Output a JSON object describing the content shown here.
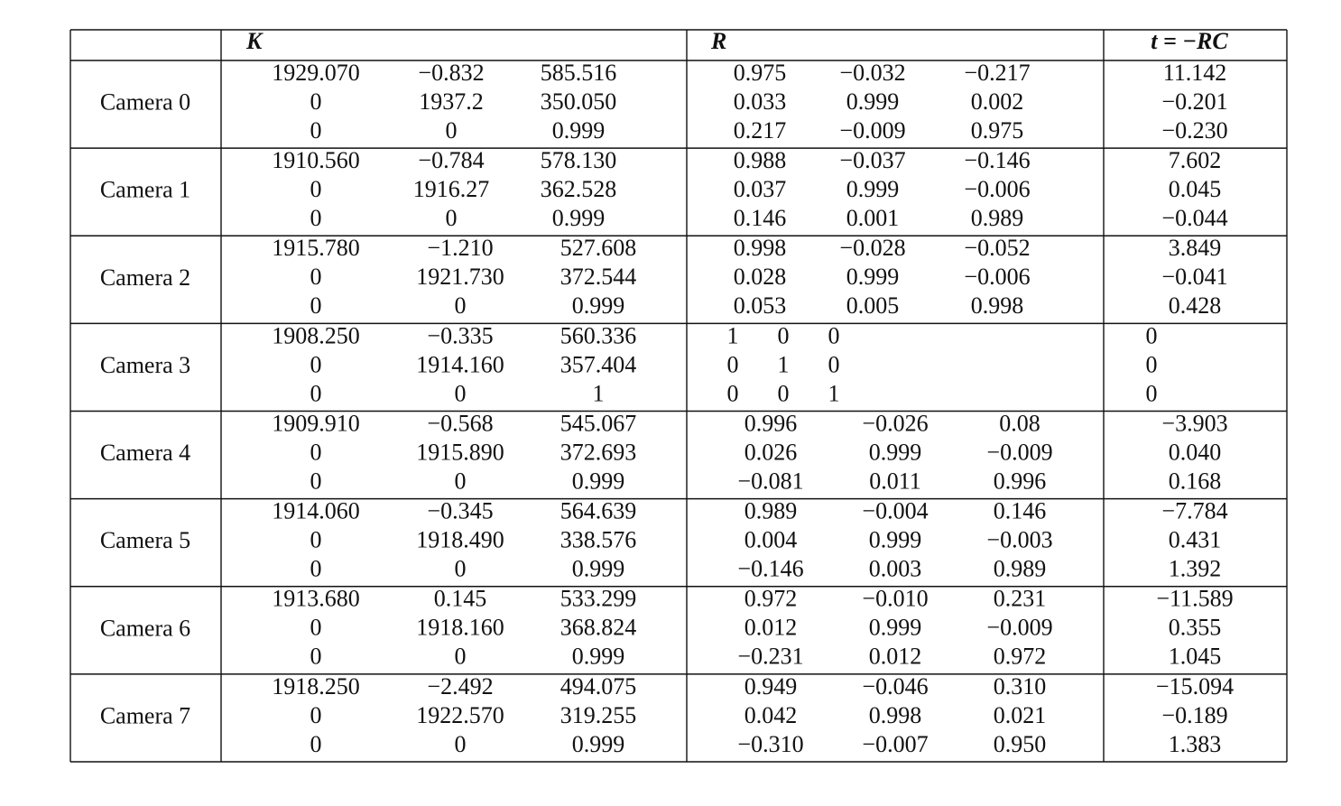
{
  "header": {
    "cells": [
      "K",
      "R",
      "t = −RC"
    ]
  },
  "rows": [
    {
      "name": "Camera 0",
      "K": [
        [
          "1929.070",
          "−0.832",
          "585.516"
        ],
        [
          "0",
          "1937.2",
          "350.050"
        ],
        [
          "0",
          "0",
          "0.999"
        ]
      ],
      "R": [
        [
          "0.975",
          "−0.032",
          "−0.217"
        ],
        [
          "0.033",
          "0.999",
          "0.002"
        ],
        [
          "0.217",
          "−0.009",
          "0.975"
        ]
      ],
      "t": [
        "11.142",
        "−0.201",
        "−0.230"
      ]
    },
    {
      "name": "Camera 1",
      "K": [
        [
          "1910.560",
          "−0.784",
          "578.130"
        ],
        [
          "0",
          "1916.27",
          "362.528"
        ],
        [
          "0",
          "0",
          "0.999"
        ]
      ],
      "R": [
        [
          "0.988",
          "−0.037",
          "−0.146"
        ],
        [
          "0.037",
          "0.999",
          "−0.006"
        ],
        [
          "0.146",
          "0.001",
          "0.989"
        ]
      ],
      "t": [
        "7.602",
        "0.045",
        "−0.044"
      ]
    },
    {
      "name": "Camera 2",
      "K": [
        [
          "1915.780",
          "−1.210",
          "527.608"
        ],
        [
          "0",
          "1921.730",
          "372.544"
        ],
        [
          "0",
          "0",
          "0.999"
        ]
      ],
      "R": [
        [
          "0.998",
          "−0.028",
          "−0.052"
        ],
        [
          "0.028",
          "0.999",
          "−0.006"
        ],
        [
          "0.053",
          "0.005",
          "0.998"
        ]
      ],
      "t": [
        "3.849",
        "−0.041",
        "0.428"
      ]
    },
    {
      "name": "Camera 3",
      "K": [
        [
          "1908.250",
          "−0.335",
          "560.336"
        ],
        [
          "0",
          "1914.160",
          "357.404"
        ],
        [
          "0",
          "0",
          "1"
        ]
      ],
      "R": [
        [
          "1",
          "0",
          "0"
        ],
        [
          "0",
          "1",
          "0"
        ],
        [
          "0",
          "0",
          "1"
        ]
      ],
      "t": [
        "0",
        "0",
        "0"
      ]
    },
    {
      "name": "Camera 4",
      "K": [
        [
          "1909.910",
          "−0.568",
          "545.067"
        ],
        [
          "0",
          "1915.890",
          "372.693"
        ],
        [
          "0",
          "0",
          "0.999"
        ]
      ],
      "R": [
        [
          "0.996",
          "−0.026",
          "0.08"
        ],
        [
          "0.026",
          "0.999",
          "−0.009"
        ],
        [
          "−0.081",
          "0.011",
          "0.996"
        ]
      ],
      "t": [
        "−3.903",
        "0.040",
        "0.168"
      ]
    },
    {
      "name": "Camera 5",
      "K": [
        [
          "1914.060",
          "−0.345",
          "564.639"
        ],
        [
          "0",
          "1918.490",
          "338.576"
        ],
        [
          "0",
          "0",
          "0.999"
        ]
      ],
      "R": [
        [
          "0.989",
          "−0.004",
          "0.146"
        ],
        [
          "0.004",
          "0.999",
          "−0.003"
        ],
        [
          "−0.146",
          "0.003",
          "0.989"
        ]
      ],
      "t": [
        "−7.784",
        "0.431",
        "1.392"
      ]
    },
    {
      "name": "Camera 6",
      "K": [
        [
          "1913.680",
          "0.145",
          "533.299"
        ],
        [
          "0",
          "1918.160",
          "368.824"
        ],
        [
          "0",
          "0",
          "0.999"
        ]
      ],
      "R": [
        [
          "0.972",
          "−0.010",
          "0.231"
        ],
        [
          "0.012",
          "0.999",
          "−0.009"
        ],
        [
          "−0.231",
          "0.012",
          "0.972"
        ]
      ],
      "t": [
        "−11.589",
        "0.355",
        "1.045"
      ]
    },
    {
      "name": "Camera 7",
      "K": [
        [
          "1918.250",
          "−2.492",
          "494.075"
        ],
        [
          "0",
          "1922.570",
          "319.255"
        ],
        [
          "0",
          "0",
          "0.999"
        ]
      ],
      "R": [
        [
          "0.949",
          "−0.046",
          "0.310"
        ],
        [
          "0.042",
          "0.998",
          "0.021"
        ],
        [
          "−0.310",
          "−0.007",
          "0.950"
        ]
      ],
      "t": [
        "−15.094",
        "−0.189",
        "1.383"
      ]
    }
  ]
}
